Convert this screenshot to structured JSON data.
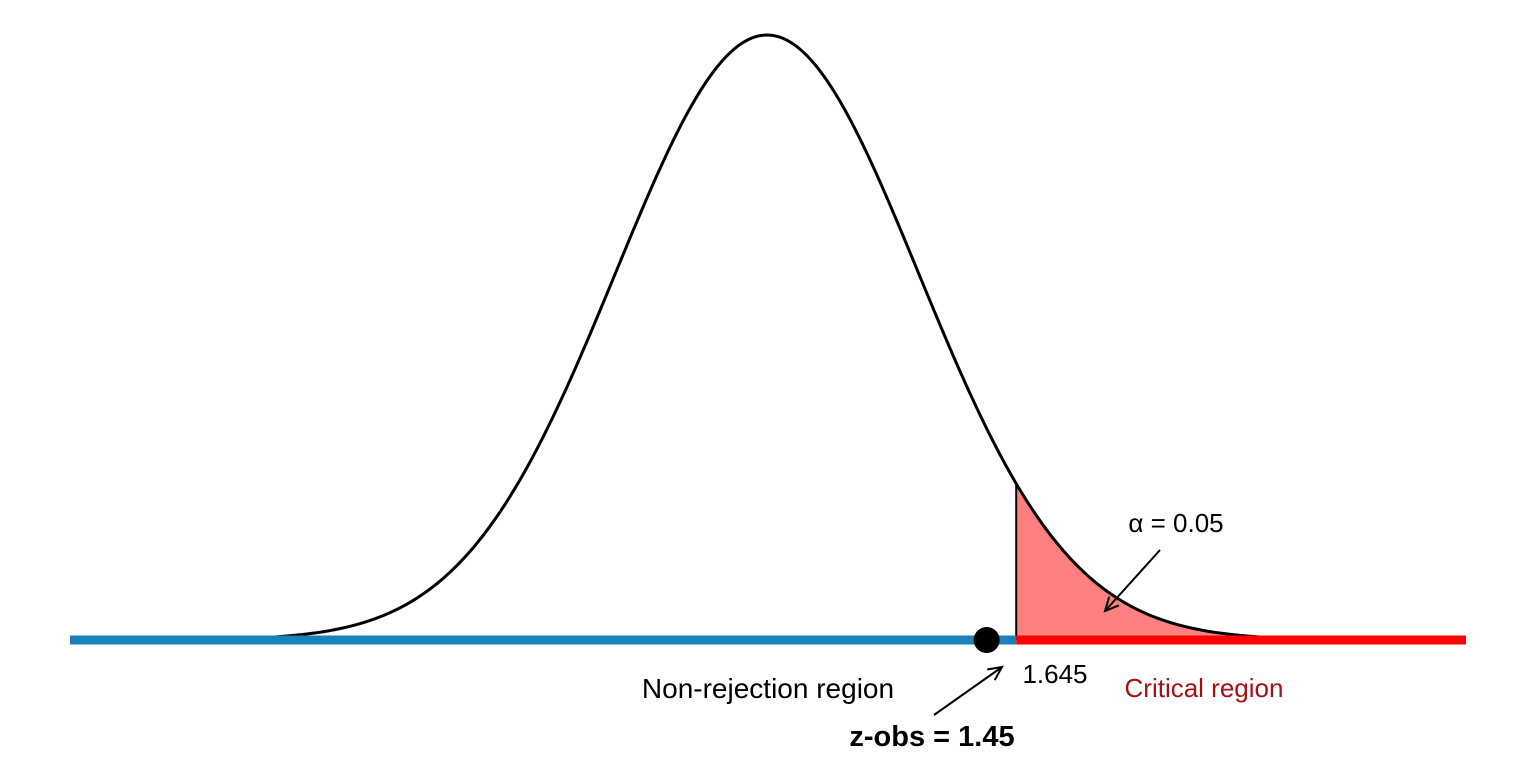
{
  "chart_data": {
    "type": "area",
    "title": "",
    "xlabel": "",
    "ylabel": "",
    "distribution": "standard normal",
    "xlim": [
      -4,
      4
    ],
    "critical_value": 1.645,
    "critical_value_label": "1.645",
    "alpha_label": "α = 0.05",
    "z_observed": 1.45,
    "z_observed_label": "z-obs = 1.45",
    "non_rejection_label": "Non-rejection region",
    "critical_region_label": "Critical region",
    "grid": false,
    "legend": "none",
    "colors": {
      "curve": "#000000",
      "non_rejection": "#1a80bb",
      "critical_line": "#ff0000",
      "critical_fill": "#ff8080",
      "critical_text": "#a50f15",
      "point": "#000000"
    }
  }
}
